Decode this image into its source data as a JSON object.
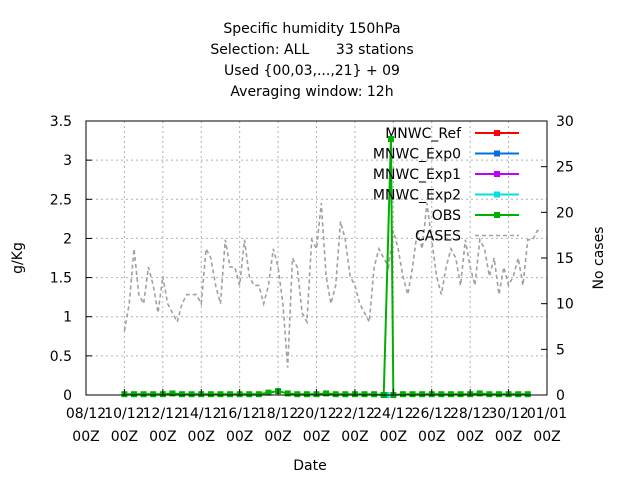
{
  "chart_data": {
    "type": "line",
    "title_lines": [
      "Specific humidity 150hPa",
      "Selection: ALL      33 stations",
      "Used {00,03,...,21} + 09",
      "Averaging window: 12h"
    ],
    "xlabel": "Date",
    "ylabel": "g/Kg",
    "y2label": "No cases",
    "grid": true,
    "legend_position": "top-right",
    "x_range": [
      "2016-12-08 00Z",
      "2017-01-01 00Z"
    ],
    "x_tick_labels": [
      [
        "08/12",
        "00Z"
      ],
      [
        "10/12",
        "00Z"
      ],
      [
        "12/12",
        "00Z"
      ],
      [
        "14/12",
        "00Z"
      ],
      [
        "16/12",
        "00Z"
      ],
      [
        "18/12",
        "00Z"
      ],
      [
        "20/12",
        "00Z"
      ],
      [
        "22/12",
        "00Z"
      ],
      [
        "24/12",
        "00Z"
      ],
      [
        "26/12",
        "00Z"
      ],
      [
        "28/12",
        "00Z"
      ],
      [
        "30/12",
        "00Z"
      ],
      [
        "01/01",
        "00Z"
      ]
    ],
    "ylim": [
      0,
      3.5
    ],
    "y_ticks": [
      "0",
      "0.5",
      "1",
      "1.5",
      "2",
      "2.5",
      "3",
      "3.5"
    ],
    "y2lim": [
      0,
      30
    ],
    "y2_ticks": [
      "0",
      "5",
      "10",
      "15",
      "20",
      "25",
      "30"
    ],
    "series": [
      {
        "name": "MNWC_Ref",
        "color": "#ff0000",
        "style": "line-marker",
        "axis": "left",
        "x": [
          "2016-12-23 12Z",
          "2016-12-23 15Z"
        ],
        "values": [
          0,
          0
        ]
      },
      {
        "name": "MNWC_Exp0",
        "color": "#0070e0",
        "style": "line-marker",
        "axis": "left",
        "x": [
          "2016-12-23 12Z",
          "2016-12-23 15Z"
        ],
        "values": [
          0,
          0
        ]
      },
      {
        "name": "MNWC_Exp1",
        "color": "#c000ff",
        "style": "line-marker",
        "axis": "left",
        "x": [
          "2016-12-23 12Z",
          "2016-12-23 15Z"
        ],
        "values": [
          0,
          0
        ]
      },
      {
        "name": "MNWC_Exp2",
        "color": "#00e0e0",
        "style": "line-marker",
        "axis": "left",
        "x": [
          "2016-12-23 12Z",
          "2016-12-23 15Z"
        ],
        "values": [
          0,
          0
        ]
      },
      {
        "name": "OBS",
        "color": "#00b000",
        "style": "line-marker",
        "axis": "left",
        "x": [
          "2016-12-10 00Z",
          "2016-12-10 12Z",
          "2016-12-11 00Z",
          "2016-12-11 12Z",
          "2016-12-12 00Z",
          "2016-12-12 12Z",
          "2016-12-13 00Z",
          "2016-12-13 12Z",
          "2016-12-14 00Z",
          "2016-12-14 12Z",
          "2016-12-15 00Z",
          "2016-12-15 12Z",
          "2016-12-16 00Z",
          "2016-12-16 12Z",
          "2016-12-17 00Z",
          "2016-12-17 12Z",
          "2016-12-18 00Z",
          "2016-12-18 12Z",
          "2016-12-19 00Z",
          "2016-12-19 12Z",
          "2016-12-20 00Z",
          "2016-12-20 12Z",
          "2016-12-21 00Z",
          "2016-12-21 12Z",
          "2016-12-22 00Z",
          "2016-12-22 12Z",
          "2016-12-23 00Z",
          "2016-12-23 12Z",
          "2016-12-23 21Z",
          "2016-12-24 00Z",
          "2016-12-24 12Z",
          "2016-12-25 00Z",
          "2016-12-25 12Z",
          "2016-12-26 00Z",
          "2016-12-26 12Z",
          "2016-12-27 00Z",
          "2016-12-27 12Z",
          "2016-12-28 00Z",
          "2016-12-28 12Z",
          "2016-12-29 00Z",
          "2016-12-29 12Z",
          "2016-12-30 00Z",
          "2016-12-30 12Z",
          "2016-12-31 00Z"
        ],
        "values": [
          0.01,
          0.01,
          0.01,
          0.01,
          0.01,
          0.02,
          0.01,
          0.01,
          0.01,
          0.01,
          0.01,
          0.01,
          0.01,
          0.01,
          0.01,
          0.03,
          0.05,
          0.02,
          0.01,
          0.01,
          0.01,
          0.02,
          0.01,
          0.01,
          0.01,
          0.01,
          0.01,
          0.0,
          3.27,
          0.0,
          0.01,
          0.01,
          0.01,
          0.01,
          0.01,
          0.01,
          0.01,
          0.01,
          0.02,
          0.01,
          0.01,
          0.01,
          0.01,
          0.01
        ]
      },
      {
        "name": "CASES",
        "color": "#a0a0a0",
        "style": "dashed",
        "axis": "right",
        "x": [
          "2016-12-10 00Z",
          "2016-12-10 06Z",
          "2016-12-10 12Z",
          "2016-12-10 18Z",
          "2016-12-11 00Z",
          "2016-12-11 06Z",
          "2016-12-11 12Z",
          "2016-12-11 18Z",
          "2016-12-12 00Z",
          "2016-12-12 06Z",
          "2016-12-12 12Z",
          "2016-12-12 18Z",
          "2016-12-13 00Z",
          "2016-12-13 06Z",
          "2016-12-13 12Z",
          "2016-12-13 18Z",
          "2016-12-14 00Z",
          "2016-12-14 06Z",
          "2016-12-14 12Z",
          "2016-12-14 18Z",
          "2016-12-15 00Z",
          "2016-12-15 06Z",
          "2016-12-15 12Z",
          "2016-12-15 18Z",
          "2016-12-16 00Z",
          "2016-12-16 06Z",
          "2016-12-16 12Z",
          "2016-12-16 18Z",
          "2016-12-17 00Z",
          "2016-12-17 06Z",
          "2016-12-17 12Z",
          "2016-12-17 18Z",
          "2016-12-18 00Z",
          "2016-12-18 06Z",
          "2016-12-18 12Z",
          "2016-12-18 18Z",
          "2016-12-19 00Z",
          "2016-12-19 06Z",
          "2016-12-19 12Z",
          "2016-12-19 18Z",
          "2016-12-20 00Z",
          "2016-12-20 06Z",
          "2016-12-20 12Z",
          "2016-12-20 18Z",
          "2016-12-21 00Z",
          "2016-12-21 06Z",
          "2016-12-21 12Z",
          "2016-12-21 18Z",
          "2016-12-22 00Z",
          "2016-12-22 06Z",
          "2016-12-22 12Z",
          "2016-12-22 18Z",
          "2016-12-23 00Z",
          "2016-12-23 06Z",
          "2016-12-23 12Z",
          "2016-12-23 18Z",
          "2016-12-24 00Z",
          "2016-12-24 06Z",
          "2016-12-24 12Z",
          "2016-12-24 18Z",
          "2016-12-25 00Z",
          "2016-12-25 06Z",
          "2016-12-25 12Z",
          "2016-12-25 18Z",
          "2016-12-26 00Z",
          "2016-12-26 06Z",
          "2016-12-26 12Z",
          "2016-12-26 18Z",
          "2016-12-27 00Z",
          "2016-12-27 06Z",
          "2016-12-27 12Z",
          "2016-12-27 18Z",
          "2016-12-28 00Z",
          "2016-12-28 06Z",
          "2016-12-28 12Z",
          "2016-12-28 18Z",
          "2016-12-29 00Z",
          "2016-12-29 06Z",
          "2016-12-29 12Z",
          "2016-12-29 18Z",
          "2016-12-30 00Z",
          "2016-12-30 06Z",
          "2016-12-30 12Z",
          "2016-12-30 18Z",
          "2016-12-31 00Z",
          "2016-12-31 06Z",
          "2016-12-31 12Z",
          "2016-12-31 18Z"
        ],
        "values": [
          7,
          10,
          16,
          11,
          10,
          14,
          12,
          9,
          13,
          10,
          9,
          8,
          10,
          11,
          11,
          11,
          10,
          16,
          15,
          12,
          10,
          17,
          14,
          14,
          12,
          17,
          13,
          12,
          12,
          10,
          12,
          16,
          14,
          10,
          3,
          15,
          14,
          9,
          8,
          17,
          16,
          21,
          13,
          10,
          12,
          19,
          17,
          13,
          12,
          10,
          9,
          8,
          14,
          16,
          15,
          14,
          18,
          16,
          13,
          11,
          14,
          18,
          16,
          21,
          17,
          13,
          11,
          14,
          16,
          15,
          12,
          17,
          14,
          12,
          17,
          16,
          13,
          15,
          11,
          14,
          12,
          13,
          15,
          12,
          17,
          17,
          18,
          18
        ]
      }
    ]
  }
}
